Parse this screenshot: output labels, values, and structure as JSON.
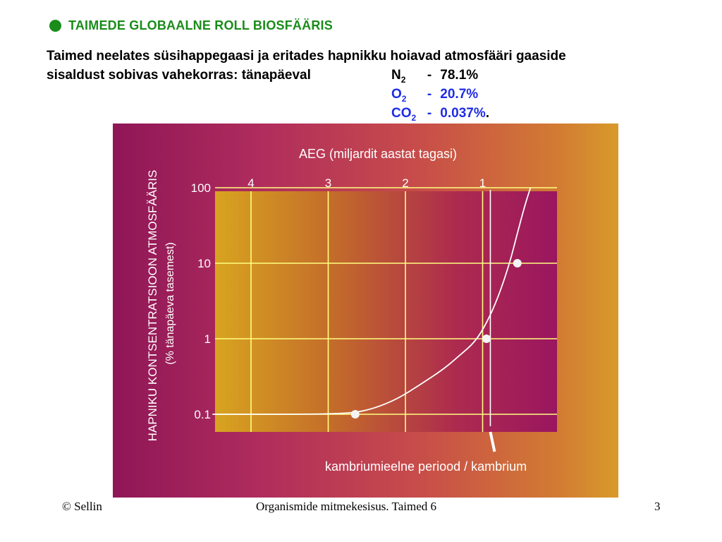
{
  "slide": {
    "heading": "TAIMEDE GLOBAALNE ROLL BIOSFÄÄRIS",
    "intro_line1": "Taimed neelates süsihappegaasi ja eritades hapnikku hoiavad atmosfääri gaaside",
    "intro_line2": "sisaldust sobivas vahekorras: tänapäeval",
    "gases": [
      {
        "symbol": "N",
        "sub": "2",
        "dash": "-",
        "value": "78.1%"
      },
      {
        "symbol": "O",
        "sub": "2",
        "dash": "-",
        "value": "20.7%"
      },
      {
        "symbol": "CO",
        "sub": "2",
        "dash": "-",
        "value": "0.037%",
        "trail": "."
      }
    ],
    "colors": {
      "heading": "#1a8c1a",
      "gas_highlight": "#1e2ce6",
      "panel_left": "#8f1657",
      "panel_right": "#d89a2a",
      "plot_left": "#d8a420",
      "plot_right": "#9a1660",
      "grid": "#ffff80",
      "curve": "#ffffff"
    }
  },
  "footer": {
    "left": "© Sellin",
    "center": "Organismide mitmekesisus. Taimed 6",
    "right": "3"
  },
  "chart_data": {
    "type": "line",
    "title": "AEG (miljardit aastat tagasi)",
    "xlabel": "AEG (miljardit aastat tagasi)",
    "ylabel": "HAPNIKU KONTSENTRATSIOON ATMOSFÄÄRIS",
    "ylabel2": "(% tänapäeva tasemest)",
    "x_reversed": true,
    "x_ticks": [
      4,
      3,
      2,
      1
    ],
    "x_tick_labels": [
      "4",
      "3",
      "2",
      "1"
    ],
    "xlim": [
      4.5,
      0
    ],
    "y_scale": "log",
    "y_ticks": [
      0.1,
      1,
      10,
      100
    ],
    "y_tick_labels": [
      "0.1",
      "1",
      "10",
      "100"
    ],
    "ylim": [
      0.075,
      110
    ],
    "grid": true,
    "series": [
      {
        "points": [
          [
            4.5,
            0.1
          ],
          [
            4.2,
            0.1
          ],
          [
            3.8,
            0.1
          ],
          [
            3.4,
            0.1
          ],
          [
            3.0,
            0.101
          ],
          [
            2.65,
            0.105
          ],
          [
            2.4,
            0.12
          ],
          [
            2.1,
            0.16
          ],
          [
            1.8,
            0.25
          ],
          [
            1.5,
            0.4
          ],
          [
            1.3,
            0.6
          ],
          [
            1.1,
            0.9
          ],
          [
            0.95,
            1.6
          ],
          [
            0.8,
            3.5
          ],
          [
            0.65,
            10
          ],
          [
            0.55,
            25
          ],
          [
            0.45,
            60
          ],
          [
            0.38,
            100
          ]
        ]
      }
    ],
    "markers": [
      {
        "x": 2.65,
        "y": 0.1
      },
      {
        "x": 0.95,
        "y": 1
      },
      {
        "x": 0.55,
        "y": 10
      }
    ],
    "annotations": [
      {
        "text": "kambriumieelne periood / kambrium",
        "x": 0.9
      }
    ]
  }
}
